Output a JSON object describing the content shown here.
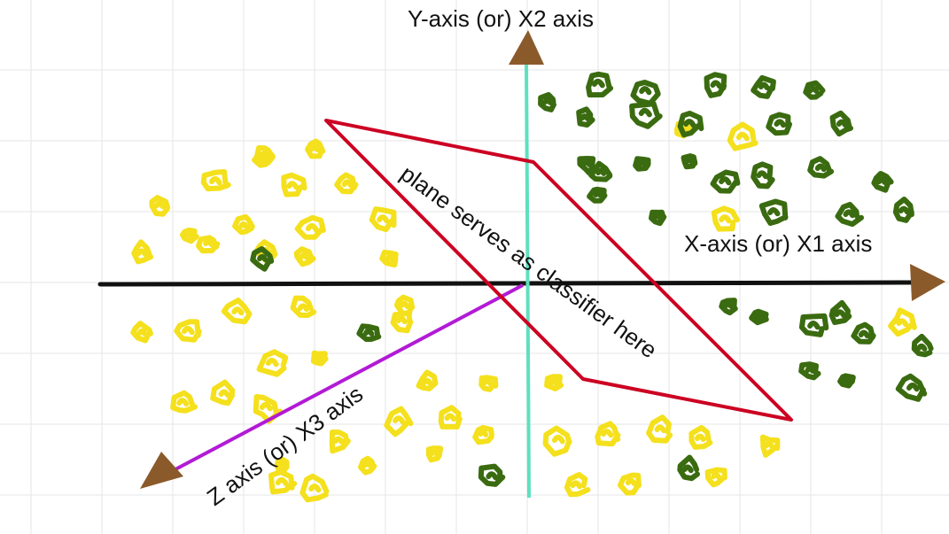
{
  "labels": {
    "y_axis": "Y-axis (or) X2 axis",
    "x_axis": "X-axis (or) X1 axis",
    "z_axis": "Z axis (or) X3 axis",
    "plane": "plane serves as classifier here"
  },
  "colors": {
    "background": "#ffffff",
    "grid": "#e6e6e6",
    "x_axis_line": "#111111",
    "y_axis_line": "#5ee0c0",
    "z_axis_line": "#b21ad6",
    "plane": "#cc0022",
    "arrowhead": "#8b5a2b",
    "class_a_points": "#f4e01c",
    "class_b_points": "#3a6b10"
  },
  "icons": {
    "arrowhead": "arrowhead-icon"
  }
}
